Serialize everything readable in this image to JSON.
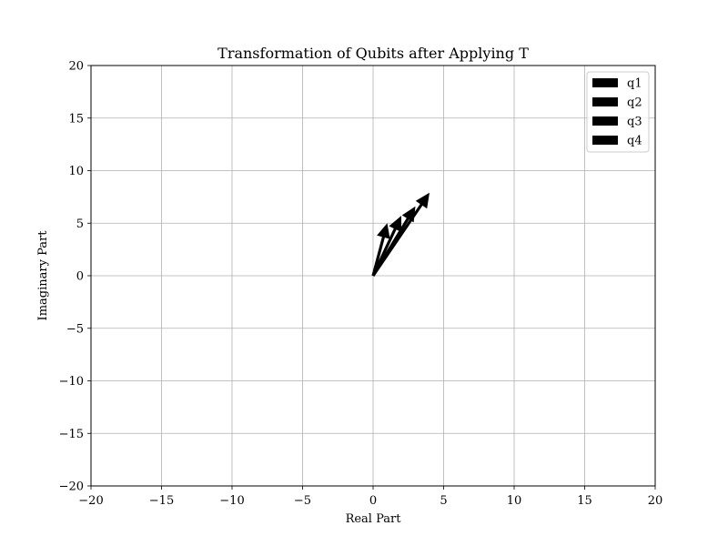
{
  "chart_data": {
    "type": "quiver",
    "title": "Transformation of Qubits after Applying T",
    "xlabel": "Real Part",
    "ylabel": "Imaginary Part",
    "xlim": [
      -20,
      20
    ],
    "ylim": [
      -20,
      20
    ],
    "xticks": [
      -20,
      -15,
      -10,
      -5,
      0,
      5,
      10,
      15,
      20
    ],
    "yticks": [
      -20,
      -15,
      -10,
      -5,
      0,
      5,
      10,
      15,
      20
    ],
    "xtick_labels": [
      "−20",
      "−15",
      "−10",
      "−5",
      "0",
      "5",
      "10",
      "15",
      "20"
    ],
    "ytick_labels": [
      "−20",
      "−15",
      "−10",
      "−5",
      "0",
      "5",
      "10",
      "15",
      "20"
    ],
    "grid": true,
    "legend_position": "top-right",
    "arrow_color": "#000000",
    "series": [
      {
        "name": "q1",
        "origin": [
          0,
          0
        ],
        "vector": [
          1.0,
          5.0
        ]
      },
      {
        "name": "q2",
        "origin": [
          0,
          0
        ],
        "vector": [
          2.0,
          5.7
        ]
      },
      {
        "name": "q3",
        "origin": [
          0,
          0
        ],
        "vector": [
          3.0,
          6.6
        ]
      },
      {
        "name": "q4",
        "origin": [
          0,
          0
        ],
        "vector": [
          4.0,
          7.9
        ]
      }
    ]
  }
}
